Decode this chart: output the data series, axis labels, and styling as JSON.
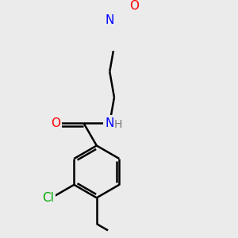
{
  "bg_color": "#ebebeb",
  "bond_color": "#000000",
  "atom_colors": {
    "O": "#ff0000",
    "N": "#0000ff",
    "Cl": "#00aa00",
    "C": "#000000",
    "H": "#777777"
  },
  "bond_width": 1.8,
  "font_size_atoms": 11,
  "font_size_h": 10,
  "figsize": [
    3.0,
    3.0
  ],
  "dpi": 100
}
